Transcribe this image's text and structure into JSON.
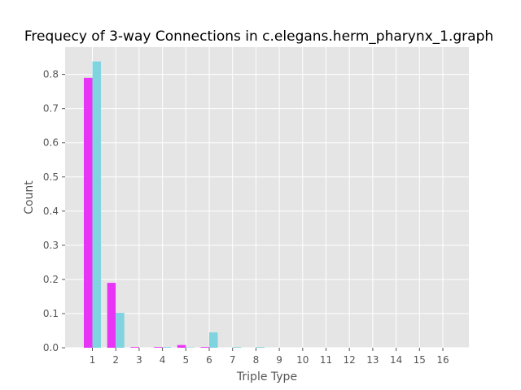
{
  "chart_data": {
    "type": "bar",
    "title": "Frequecy of 3-way Connections in c.elegans.herm_pharynx_1.graph",
    "xlabel": "Triple Type",
    "ylabel": "Count",
    "categories": [
      "1",
      "2",
      "3",
      "4",
      "5",
      "6",
      "7",
      "8",
      "9",
      "10",
      "11",
      "12",
      "13",
      "14",
      "15",
      "16"
    ],
    "ylim": [
      0,
      0.88
    ],
    "yticks": [
      0.0,
      0.1,
      0.2,
      0.3,
      0.4,
      0.5,
      0.6,
      0.7,
      0.8
    ],
    "ytick_labels": [
      "0.0",
      "0.1",
      "0.2",
      "0.3",
      "0.4",
      "0.5",
      "0.6",
      "0.7",
      "0.8"
    ],
    "grid": true,
    "series": [
      {
        "name": "series-magenta",
        "color": "#e835f5",
        "values": [
          0.79,
          0.19,
          0.002,
          0.002,
          0.008,
          0.002,
          0.0,
          0.0,
          0.0,
          0.0,
          0.0,
          0.0,
          0.0,
          0.0,
          0.0,
          0.0
        ]
      },
      {
        "name": "series-cyan",
        "color": "#80d4e0",
        "values": [
          0.838,
          0.102,
          0.0,
          0.002,
          0.001,
          0.045,
          0.002,
          0.002,
          0.0,
          0.0,
          0.0,
          0.0,
          0.0,
          0.0,
          0.0,
          0.0
        ]
      }
    ],
    "background_color": "#e5e5e5",
    "grid_color": "#ffffff"
  }
}
